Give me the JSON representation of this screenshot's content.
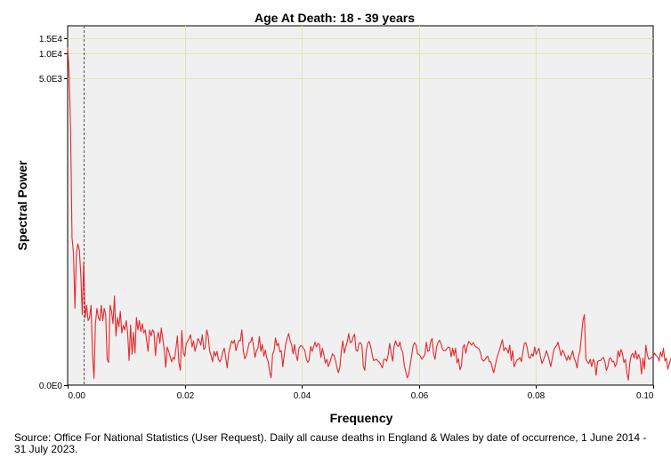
{
  "chart_data": {
    "type": "line",
    "title": "Age At Death: 18 - 39 years",
    "xlabel": "Frequency",
    "ylabel": "Spectral Power",
    "xlim": [
      0.0,
      0.1
    ],
    "x_ticks": [
      "0.00",
      "0.02",
      "0.04",
      "0.06",
      "0.08",
      "0.10"
    ],
    "y_ticks": [
      {
        "label": "0.0E0",
        "value": 0
      },
      {
        "label": "5.0E3",
        "value": 5000
      },
      {
        "label": "1.0E4",
        "value": 10000
      },
      {
        "label": "1.5E4",
        "value": 15000
      }
    ],
    "y_scale": "nonlinear (compressed toward top)",
    "grid": true,
    "reference_line": {
      "x": 0.0027,
      "style": "dashed"
    },
    "colors": {
      "series": "#e8262a",
      "plot_background": "#f0f0f0",
      "grid": "#dfe6b4"
    },
    "series": [
      {
        "x_start": 0.0,
        "x_step": 0.00025,
        "values": [
          12000,
          6200,
          4200,
          2400,
          2150,
          1250,
          2150,
          2300,
          2200,
          1800,
          1150,
          2000,
          1100,
          1300,
          1050,
          1100,
          1300,
          500,
          110,
          1000,
          1250,
          1100,
          1050,
          1300,
          1050,
          1250,
          1150,
          420,
          370,
          1300,
          1200,
          1000,
          1450,
          800,
          1100,
          950,
          1200,
          850,
          970,
          900,
          1050,
          850,
          400,
          980,
          500,
          860,
          520,
          1100,
          900,
          1050,
          870,
          1000,
          850,
          900,
          720,
          550,
          900,
          800,
          900,
          860,
          480,
          760,
          860,
          680,
          930,
          750,
          580,
          290,
          620,
          550,
          470,
          380,
          450,
          420,
          600,
          800,
          360,
          240,
          890,
          530,
          470,
          670,
          720,
          760,
          820,
          620,
          720,
          550,
          640,
          760,
          720,
          650,
          820,
          580,
          610,
          900,
          800,
          560,
          480,
          380,
          550,
          470,
          550,
          420,
          380,
          430,
          540,
          600,
          450,
          280,
          520,
          620,
          720,
          680,
          730,
          560,
          660,
          730,
          720,
          900,
          560,
          430,
          470,
          580,
          690,
          700,
          780,
          630,
          450,
          560,
          600,
          790,
          550,
          660,
          470,
          570,
          450,
          380,
          220,
          120,
          500,
          560,
          770,
          640,
          680,
          540,
          560,
          300,
          500,
          670,
          770,
          840,
          720,
          660,
          510,
          660,
          500,
          400,
          600,
          640,
          640,
          600,
          570,
          430,
          370,
          410,
          630,
          550,
          620,
          700,
          620,
          680,
          660,
          450,
          600,
          500,
          360,
          420,
          300,
          360,
          440,
          510,
          480,
          400,
          280,
          200,
          300,
          560,
          720,
          520,
          620,
          700,
          840,
          690,
          700,
          780,
          830,
          570,
          550,
          680,
          690,
          650,
          300,
          240,
          560,
          680,
          710,
          630,
          500,
          400,
          410,
          420,
          390,
          370,
          330,
          280,
          420,
          420,
          390,
          500,
          680,
          520,
          390,
          630,
          720,
          650,
          630,
          700,
          580,
          530,
          310,
          220,
          120,
          170,
          330,
          480,
          640,
          690,
          650,
          510,
          500,
          470,
          420,
          460,
          490,
          700,
          550,
          560,
          710,
          760,
          500,
          420,
          620,
          690,
          730,
          680,
          590,
          560,
          560,
          590,
          620,
          610,
          460,
          600,
          480,
          600,
          360,
          430,
          250,
          310,
          610,
          660,
          520,
          640,
          710,
          680,
          650,
          690,
          650,
          620,
          610,
          590,
          530,
          420,
          390,
          410,
          450,
          470,
          380,
          380,
          290,
          200,
          300,
          420,
          500,
          570,
          660,
          740,
          560,
          610,
          590,
          520,
          650,
          400,
          560,
          300,
          360,
          410,
          420,
          450,
          380,
          540,
          680,
          690,
          600,
          450,
          440,
          510,
          470,
          620,
          500,
          550,
          600,
          460,
          350,
          410,
          470,
          560,
          500,
          400,
          300,
          430,
          560,
          620,
          640,
          700,
          590,
          480,
          570,
          530,
          460,
          400,
          480,
          410,
          480,
          560,
          440,
          380,
          280,
          470,
          560,
          800,
          1050,
          1150,
          430,
          380,
          350,
          420,
          300,
          420,
          370,
          160,
          380,
          400,
          400,
          430,
          450,
          380,
          240,
          300,
          430,
          440,
          380,
          390,
          300,
          350,
          560,
          460,
          580,
          510,
          370,
          420,
          200,
          80,
          350,
          480,
          520,
          440,
          560,
          420,
          500,
          430,
          180,
          440,
          260,
          650,
          490,
          420,
          430,
          450,
          470,
          520,
          480,
          460,
          390,
          540,
          460,
          600,
          390,
          440,
          260,
          350,
          420,
          500,
          300,
          180,
          250
        ]
      }
    ]
  },
  "footer": {
    "source_note": "Source: Office For National Statistics (User Request). Daily all cause deaths in England & Wales by date of occurrence, 1 June 2014 - 31 July 2023."
  }
}
